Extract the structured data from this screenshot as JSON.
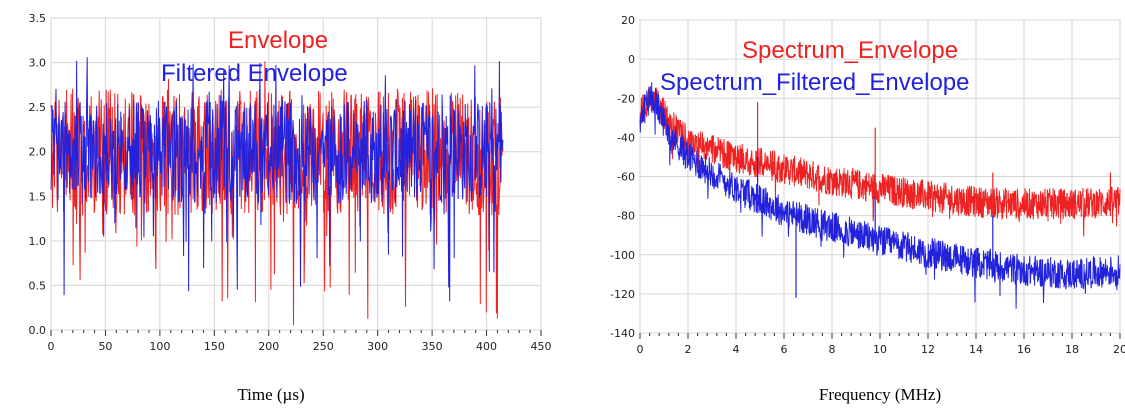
{
  "chart_data": [
    {
      "type": "line",
      "title": "",
      "xlabel": "Time (µs)",
      "ylabel": "",
      "xlim": [
        0,
        450
      ],
      "ylim": [
        0.0,
        3.5
      ],
      "x_ticks": [
        "0",
        "50",
        "100",
        "150",
        "200",
        "250",
        "300",
        "350",
        "400",
        "450"
      ],
      "y_ticks": [
        "0.0",
        "0.5",
        "1.0",
        "1.5",
        "2.0",
        "2.5",
        "3.0",
        "3.5"
      ],
      "grid": true,
      "legend": "top-center",
      "x_extent": [
        0,
        415
      ],
      "series": [
        {
          "name": "Envelope",
          "color": "#ee2222",
          "typical": [
            1.4,
            2.5
          ],
          "center": 2.0,
          "min": 0.05,
          "max": 3.05
        },
        {
          "name": "Filtered Envelope",
          "color": "#2222dd",
          "typical": [
            1.5,
            2.4
          ],
          "center": 2.0,
          "min": 0.3,
          "max": 3.1
        }
      ]
    },
    {
      "type": "line",
      "title": "",
      "xlabel": "Frequency (MHz)",
      "ylabel": "",
      "xlim": [
        0,
        20
      ],
      "ylim": [
        -140,
        20
      ],
      "x_ticks": [
        "0",
        "2",
        "4",
        "6",
        "8",
        "10",
        "12",
        "14",
        "16",
        "18",
        "20"
      ],
      "y_ticks": [
        "20",
        "0",
        "-20",
        "-40",
        "-60",
        "-80",
        "-100",
        "-120",
        "-140"
      ],
      "grid": true,
      "legend": "top-center",
      "series": [
        {
          "name": "Spectrum_Envelope",
          "color": "#ee2222",
          "x": [
            0,
            0.5,
            1,
            1.5,
            2,
            4,
            6,
            8,
            10,
            12,
            14,
            16,
            18,
            20
          ],
          "y": [
            -28,
            -18,
            -28,
            -36,
            -42,
            -50,
            -56,
            -62,
            -66,
            -70,
            -73,
            -74,
            -74,
            -73
          ],
          "spikes": [
            {
              "x": 4.9,
              "y": -22
            },
            {
              "x": 9.8,
              "y": -35
            },
            {
              "x": 14.7,
              "y": -58
            },
            {
              "x": 19.6,
              "y": -58
            }
          ]
        },
        {
          "name": "Spectrum_Filtered_Envelope",
          "color": "#2222dd",
          "x": [
            0,
            0.5,
            1,
            1.5,
            2,
            4,
            6,
            8,
            10,
            12,
            14,
            16,
            18,
            20
          ],
          "y": [
            -30,
            -18,
            -32,
            -42,
            -50,
            -66,
            -78,
            -86,
            -93,
            -99,
            -104,
            -108,
            -110,
            -108
          ],
          "spikes": [
            {
              "x": 4.9,
              "y": -50
            },
            {
              "x": 6.5,
              "y": -122
            },
            {
              "x": 9.8,
              "y": -70
            },
            {
              "x": 14.7,
              "y": -80
            }
          ]
        }
      ]
    }
  ]
}
